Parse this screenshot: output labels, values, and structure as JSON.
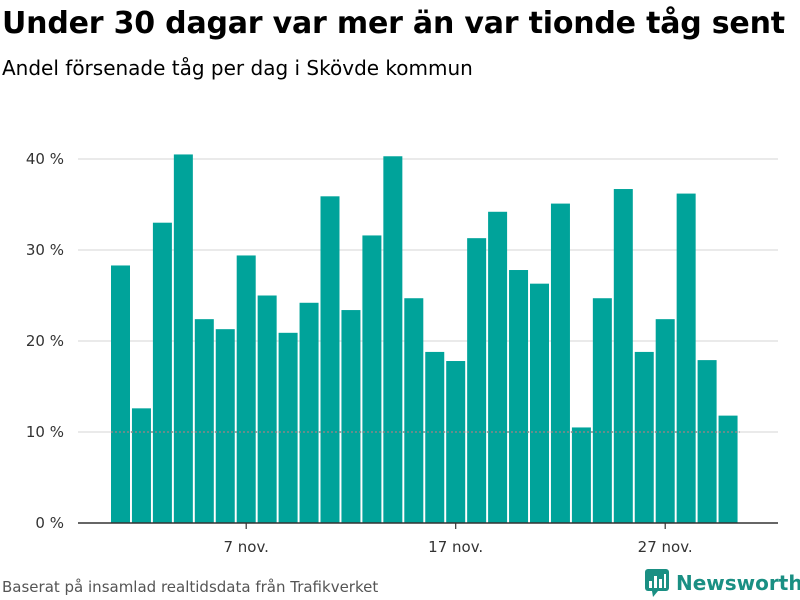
{
  "header": {
    "title": "Under 30 dagar var mer än var tionde tåg sent",
    "subtitle": "Andel försenade tåg per dag i Skövde kommun"
  },
  "footer": {
    "source": "Baserat på insamlad realtidsdata från Trafikverket",
    "brand": "Newsworthy",
    "brand_icon": "bar-chart-icon",
    "brand_color": "#1a8f83"
  },
  "chart_data": {
    "type": "bar",
    "title": "Under 30 dagar var mer än var tionde tåg sent",
    "subtitle": "Andel försenade tåg per dag i Skövde kommun",
    "xlabel": "",
    "ylabel": "",
    "ylim": [
      0,
      40
    ],
    "yticks": [
      0,
      10,
      20,
      30,
      40
    ],
    "ytick_labels": [
      "0 %",
      "10 %",
      "20 %",
      "30 %",
      "40 %"
    ],
    "grid": true,
    "legend": "none",
    "bar_color": "#00a39a",
    "reference_line": {
      "value": 10,
      "style": "dotted",
      "color": "#888888"
    },
    "categories": [
      "2024-11-01",
      "2024-11-02",
      "2024-11-03",
      "2024-11-04",
      "2024-11-05",
      "2024-11-06",
      "2024-11-07",
      "2024-11-08",
      "2024-11-09",
      "2024-11-10",
      "2024-11-11",
      "2024-11-12",
      "2024-11-13",
      "2024-11-14",
      "2024-11-15",
      "2024-11-16",
      "2024-11-17",
      "2024-11-18",
      "2024-11-19",
      "2024-11-20",
      "2024-11-21",
      "2024-11-22",
      "2024-11-23",
      "2024-11-24",
      "2024-11-25",
      "2024-11-26",
      "2024-11-27",
      "2024-11-28",
      "2024-11-29",
      "2024-11-30"
    ],
    "values": [
      28.3,
      12.6,
      33.0,
      40.5,
      22.4,
      21.3,
      29.4,
      25.0,
      20.9,
      24.2,
      35.9,
      23.4,
      31.6,
      40.3,
      24.7,
      18.8,
      17.8,
      31.3,
      34.2,
      27.8,
      26.3,
      35.1,
      10.5,
      24.7,
      36.7,
      18.8,
      22.4,
      36.2,
      17.9,
      11.8
    ],
    "xticks": [
      {
        "category": "2024-11-07",
        "label": "7 nov."
      },
      {
        "category": "2024-11-17",
        "label": "17 nov."
      },
      {
        "category": "2024-11-27",
        "label": "27 nov."
      }
    ]
  }
}
